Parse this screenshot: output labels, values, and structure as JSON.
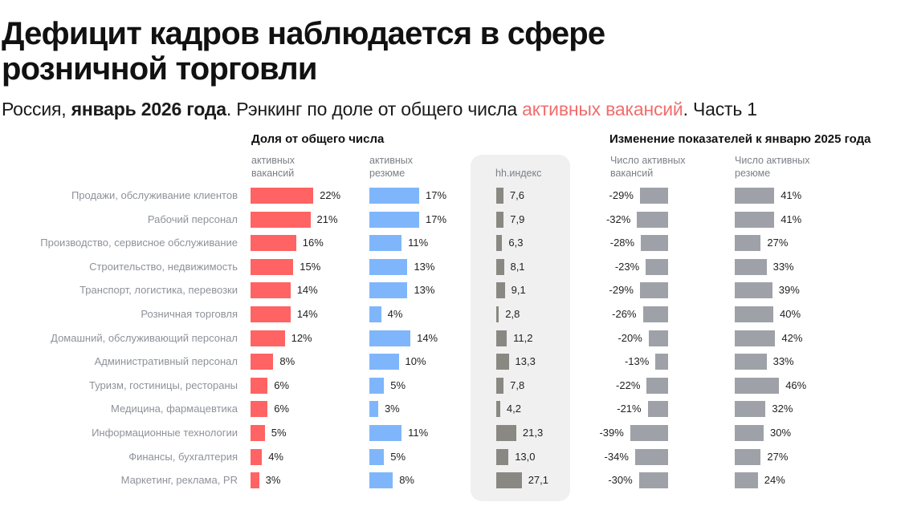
{
  "header": {
    "title": "Дефицит кадров наблюдается в сфере розничной торговли",
    "subtitle_prefix": "Россия, ",
    "subtitle_bold": "январь 2026 года",
    "subtitle_mid": ". Рэнкинг по доле от общего числа ",
    "subtitle_accent": "активных вакансий",
    "subtitle_suffix": ". Часть 1"
  },
  "colors": {
    "vacancies": "#ff6363",
    "resumes": "#7fb6fb",
    "hh_index": "#8a8882",
    "change": "#9fa1a8",
    "accent_text": "#f26d6d",
    "panel_bg": "#f0f0f0"
  },
  "chart_data": {
    "type": "bar",
    "title": "Дефицит кадров наблюдается в сфере розничной торговли",
    "subtitle": "Россия, январь 2026 года. Рэнкинг по доле от общего числа активных вакансий. Часть 1",
    "orientation": "horizontal",
    "categories": [
      "Продажи, обслуживание клиентов",
      "Рабочий персонал",
      "Производство, сервисное обслуживание",
      "Строительство, недвижимость",
      "Транспорт, логистика, перевозки",
      "Розничная торговля",
      "Домашний, обслуживающий персонал",
      "Административный персонал",
      "Туризм, гостиницы, рестораны",
      "Медицина, фармацевтика",
      "Информационные технологии",
      "Финансы, бухгалтерия",
      "Маркетинг, реклама, PR"
    ],
    "groups": [
      {
        "title": "Доля от общего числа",
        "series_keys": [
          "share_vacancies",
          "share_resumes"
        ]
      },
      {
        "title": "Изменение показателей к январю 2025 года",
        "series_keys": [
          "change_vacancies",
          "change_resumes"
        ]
      }
    ],
    "series": [
      {
        "key": "share_vacancies",
        "name": "активных вакансий",
        "unit": "%",
        "values": [
          22,
          21,
          16,
          15,
          14,
          14,
          12,
          8,
          6,
          6,
          5,
          4,
          3
        ],
        "labels": [
          "22%",
          "21%",
          "16%",
          "15%",
          "14%",
          "14%",
          "12%",
          "8%",
          "6%",
          "6%",
          "5%",
          "4%",
          "3%"
        ]
      },
      {
        "key": "share_resumes",
        "name": "активных резюме",
        "unit": "%",
        "values": [
          17,
          17,
          11,
          13,
          13,
          4,
          14,
          10,
          5,
          3,
          11,
          5,
          8
        ],
        "labels": [
          "17%",
          "17%",
          "11%",
          "13%",
          "13%",
          "4%",
          "14%",
          "10%",
          "5%",
          "3%",
          "11%",
          "5%",
          "8%"
        ]
      },
      {
        "key": "hh_index",
        "name": "hh.индекс",
        "unit": "",
        "values": [
          7.6,
          7.9,
          6.3,
          8.1,
          9.1,
          2.8,
          11.2,
          13.3,
          7.8,
          4.2,
          21.3,
          13.0,
          27.1
        ],
        "labels": [
          "7,6",
          "7,9",
          "6,3",
          "8,1",
          "9,1",
          "2,8",
          "11,2",
          "13,3",
          "7,8",
          "4,2",
          "21,3",
          "13,0",
          "27,1"
        ]
      },
      {
        "key": "change_vacancies",
        "name": "Число активных вакансий",
        "unit": "%",
        "values": [
          -29,
          -32,
          -28,
          -23,
          -29,
          -26,
          -20,
          -13,
          -22,
          -21,
          -39,
          -34,
          -30
        ],
        "labels": [
          "-29%",
          "-32%",
          "-28%",
          "-23%",
          "-29%",
          "-26%",
          "-20%",
          "-13%",
          "-22%",
          "-21%",
          "-39%",
          "-34%",
          "-30%"
        ]
      },
      {
        "key": "change_resumes",
        "name": "Число активных резюме",
        "unit": "%",
        "values": [
          41,
          41,
          27,
          33,
          39,
          40,
          42,
          33,
          46,
          32,
          30,
          27,
          24
        ],
        "labels": [
          "41%",
          "41%",
          "27%",
          "33%",
          "39%",
          "40%",
          "42%",
          "33%",
          "46%",
          "32%",
          "30%",
          "27%",
          "24%"
        ]
      }
    ],
    "column_headers": {
      "share_vacancies": [
        "активных",
        "вакансий"
      ],
      "share_resumes": [
        "активных",
        "резюме"
      ],
      "hh_index": [
        "hh.индекс"
      ],
      "change_vacancies": [
        "Число активных",
        "вакансий"
      ],
      "change_resumes": [
        "Число активных",
        "резюме"
      ]
    },
    "grid": false,
    "legend": "none"
  }
}
